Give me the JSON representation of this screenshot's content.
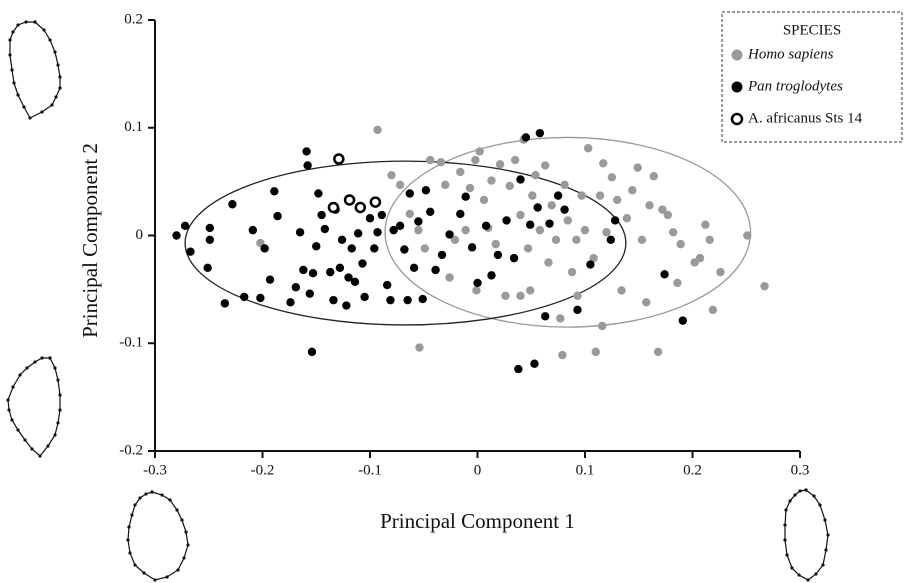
{
  "chart_data": {
    "type": "scatter",
    "x_label": "Principal Component 1",
    "y_label": "Principal Component 2",
    "legend_title": "SPECIES",
    "legend_position": "upper right",
    "xlim": [
      -0.3,
      0.3
    ],
    "ylim": [
      -0.2,
      0.2
    ],
    "xticks": [
      -0.3,
      -0.2,
      -0.1,
      0,
      0.1,
      0.2,
      0.3
    ],
    "yticks": [
      0.2,
      0.1,
      0,
      -0.1,
      -0.2
    ],
    "series": [
      {
        "name": "Homo sapiens",
        "color": "#9a9a9a",
        "marker": "filled",
        "ellipse": {
          "cx": 0.084,
          "cy": 0.003,
          "rx": 0.17,
          "ry": 0.088
        },
        "x": [
          -0.202,
          -0.093,
          -0.054,
          -0.08,
          -0.072,
          -0.063,
          -0.055,
          -0.049,
          -0.044,
          -0.034,
          -0.03,
          -0.026,
          -0.021,
          -0.016,
          -0.011,
          -0.007,
          -0.002,
          0.002,
          0.006,
          0.01,
          0.013,
          0.017,
          0.021,
          0.026,
          0.03,
          0.035,
          0.04,
          0.043,
          0.047,
          0.051,
          0.054,
          0.058,
          0.063,
          0.066,
          0.069,
          0.073,
          0.077,
          0.079,
          0.081,
          0.084,
          0.088,
          0.092,
          0.093,
          0.097,
          0.1,
          0.103,
          0.108,
          0.11,
          0.114,
          0.117,
          0.12,
          0.125,
          0.13,
          0.134,
          0.139,
          0.144,
          0.149,
          0.153,
          0.157,
          0.16,
          0.164,
          0.168,
          0.172,
          0.177,
          0.182,
          0.186,
          0.189,
          0.202,
          0.207,
          0.212,
          0.216,
          0.219,
          0.226,
          0.251,
          0.267,
          0.116,
          0.049,
          -0.001,
          0.04
        ],
        "values": [
          -0.007,
          0.098,
          -0.104,
          0.056,
          0.047,
          0.02,
          0.005,
          -0.012,
          0.07,
          0.068,
          0.047,
          -0.039,
          -0.004,
          0.059,
          0.005,
          0.044,
          0.07,
          0.078,
          0.033,
          0.007,
          0.051,
          -0.008,
          0.066,
          -0.056,
          0.046,
          0.07,
          0.019,
          0.089,
          -0.012,
          0.037,
          0.056,
          0.005,
          0.065,
          -0.025,
          0.028,
          -0.004,
          -0.077,
          -0.111,
          0.047,
          0.014,
          -0.034,
          -0.004,
          -0.056,
          0.037,
          0.005,
          0.081,
          -0.021,
          -0.108,
          0.037,
          0.067,
          0.003,
          0.054,
          0.033,
          -0.051,
          0.016,
          0.042,
          0.063,
          -0.004,
          -0.062,
          0.028,
          0.055,
          -0.108,
          0.024,
          0.019,
          0.003,
          -0.044,
          -0.008,
          -0.025,
          -0.021,
          0.01,
          -0.004,
          -0.069,
          -0.034,
          0.0,
          -0.047,
          -0.084,
          -0.051,
          -0.051,
          -0.056
        ]
      },
      {
        "name": "Pan troglodytes",
        "color": "#000000",
        "marker": "filled",
        "ellipse": {
          "cx": -0.067,
          "cy": -0.007,
          "rx": 0.205,
          "ry": 0.076
        },
        "x": [
          -0.28,
          -0.272,
          -0.267,
          -0.249,
          -0.249,
          -0.251,
          -0.235,
          -0.228,
          -0.217,
          -0.209,
          -0.202,
          -0.198,
          -0.193,
          -0.189,
          -0.186,
          -0.174,
          -0.169,
          -0.165,
          -0.162,
          -0.159,
          -0.158,
          -0.156,
          -0.153,
          -0.15,
          -0.148,
          -0.145,
          -0.142,
          -0.137,
          -0.134,
          -0.132,
          -0.128,
          -0.126,
          -0.122,
          -0.12,
          -0.117,
          -0.114,
          -0.111,
          -0.107,
          -0.105,
          -0.1,
          -0.096,
          -0.093,
          -0.089,
          -0.084,
          -0.081,
          -0.078,
          -0.072,
          -0.068,
          -0.065,
          -0.063,
          -0.059,
          -0.055,
          -0.051,
          -0.048,
          -0.044,
          -0.039,
          -0.033,
          -0.026,
          -0.016,
          -0.011,
          -0.005,
          0.0,
          0.008,
          0.013,
          0.019,
          0.027,
          0.034,
          0.04,
          0.049,
          0.056,
          0.058,
          0.063,
          0.067,
          0.075,
          0.081,
          0.093,
          0.105,
          0.124,
          0.128,
          0.174,
          0.191,
          -0.154,
          0.038,
          0.053,
          0.045
        ],
        "values": [
          0.0,
          0.009,
          -0.015,
          0.007,
          -0.004,
          -0.03,
          -0.063,
          0.029,
          -0.057,
          0.005,
          -0.058,
          -0.012,
          -0.041,
          0.041,
          0.018,
          -0.062,
          -0.048,
          0.003,
          -0.032,
          0.078,
          0.065,
          -0.054,
          -0.035,
          -0.01,
          0.039,
          0.019,
          0.006,
          -0.034,
          -0.06,
          0.024,
          -0.03,
          -0.004,
          -0.065,
          -0.039,
          -0.012,
          -0.043,
          0.002,
          -0.026,
          -0.057,
          0.016,
          -0.012,
          0.003,
          0.019,
          -0.046,
          -0.06,
          0.005,
          0.009,
          -0.013,
          -0.06,
          0.039,
          -0.03,
          0.013,
          -0.059,
          0.042,
          0.022,
          -0.032,
          -0.018,
          0.001,
          0.02,
          0.036,
          -0.011,
          -0.044,
          0.009,
          -0.037,
          -0.018,
          0.014,
          -0.021,
          0.052,
          0.01,
          0.026,
          0.095,
          -0.075,
          0.011,
          0.037,
          0.024,
          -0.069,
          -0.027,
          -0.004,
          0.014,
          -0.036,
          -0.079,
          -0.108,
          -0.124,
          -0.119,
          0.091
        ]
      },
      {
        "name": "A. africanus Sts 14",
        "color": "#000000",
        "marker": "open",
        "x": [
          -0.129,
          -0.134,
          -0.119,
          -0.109,
          -0.095
        ],
        "values": [
          0.071,
          0.026,
          0.033,
          0.026,
          0.031
        ]
      }
    ]
  }
}
